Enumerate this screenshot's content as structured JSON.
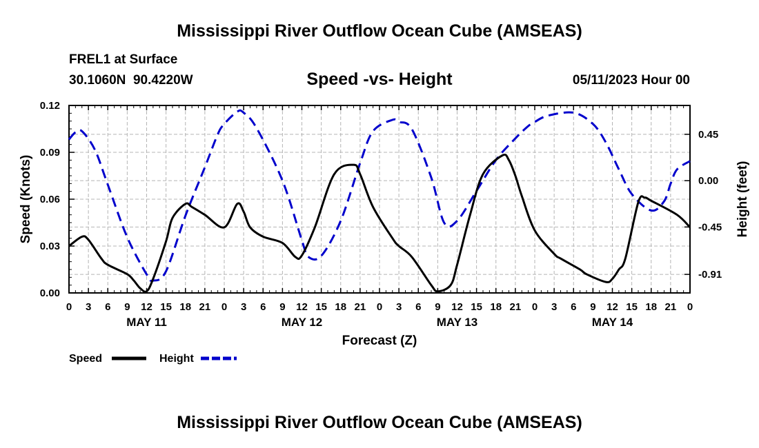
{
  "page": {
    "title": "Mississippi River Outflow Ocean Cube (AMSEAS)",
    "footer_title": "Mississippi River Outflow Ocean Cube (AMSEAS)",
    "station": "FREL1 at Surface",
    "coords": "30.1060N  90.4220W",
    "chart_title": "Speed -vs- Height",
    "date": "05/11/2023 Hour 00"
  },
  "chart_data": {
    "type": "line",
    "title": "Speed -vs- Height",
    "xlabel": "Forecast (Z)",
    "ylabel": "Speed (Knots)",
    "y2label": "Height (feet)",
    "xlim": [
      0,
      96
    ],
    "ylim": [
      0,
      0.12
    ],
    "y2lim": [
      -1.09,
      0.73
    ],
    "yticks": [
      "0.00",
      "0.03",
      "0.06",
      "0.09",
      "0.12"
    ],
    "y2ticks": [
      "-0.91",
      "-0.45",
      "0.00",
      "0.45"
    ],
    "xtick_labels": [
      "0",
      "3",
      "6",
      "9",
      "12",
      "15",
      "18",
      "21",
      "0",
      "3",
      "6",
      "9",
      "12",
      "15",
      "18",
      "21",
      "0",
      "3",
      "6",
      "9",
      "12",
      "15",
      "18",
      "21",
      "0",
      "3",
      "6",
      "9",
      "12",
      "15",
      "18",
      "21",
      "0"
    ],
    "day_labels": [
      "MAY 11",
      "MAY 12",
      "MAY 13",
      "MAY 14"
    ],
    "grid": true,
    "series": [
      {
        "name": "Speed",
        "color": "#000000",
        "axis": "left",
        "x": [
          0,
          2,
          3,
          5,
          6,
          9,
          10,
          11,
          12,
          13,
          15,
          16,
          18,
          19,
          21,
          24,
          26,
          27,
          28,
          30,
          33,
          35,
          36,
          38,
          41,
          44,
          45,
          47,
          50,
          51,
          53,
          56,
          57,
          59,
          60,
          62,
          64,
          67,
          68,
          69,
          70,
          72,
          75,
          76,
          79,
          80,
          83,
          84,
          85,
          86,
          88,
          89,
          90,
          94,
          96
        ],
        "values": [
          0.03,
          0.036,
          0.034,
          0.022,
          0.018,
          0.012,
          0.008,
          0.003,
          0.001,
          0.009,
          0.033,
          0.048,
          0.057,
          0.055,
          0.05,
          0.042,
          0.057,
          0.052,
          0.042,
          0.036,
          0.032,
          0.023,
          0.024,
          0.042,
          0.076,
          0.082,
          0.076,
          0.055,
          0.035,
          0.03,
          0.023,
          0.005,
          0.001,
          0.005,
          0.018,
          0.05,
          0.076,
          0.088,
          0.085,
          0.075,
          0.062,
          0.04,
          0.025,
          0.022,
          0.015,
          0.012,
          0.007,
          0.009,
          0.015,
          0.022,
          0.058,
          0.061,
          0.059,
          0.05,
          0.042
        ]
      },
      {
        "name": "Height",
        "color": "#0000cc",
        "axis": "right",
        "x": [
          0,
          1,
          2,
          4,
          6,
          9,
          12,
          13,
          15,
          18,
          21,
          23,
          24,
          26,
          27,
          29,
          33,
          36,
          37,
          39,
          42,
          45,
          47,
          50,
          51,
          53,
          56,
          58,
          60,
          63,
          66,
          69,
          71,
          72,
          74,
          78,
          81,
          83,
          85,
          87,
          90,
          92,
          93,
          94,
          96
        ],
        "values": [
          0.4,
          0.47,
          0.48,
          0.3,
          -0.04,
          -0.55,
          -0.91,
          -0.97,
          -0.88,
          -0.34,
          0.13,
          0.45,
          0.55,
          0.67,
          0.66,
          0.51,
          0.0,
          -0.58,
          -0.74,
          -0.73,
          -0.39,
          0.17,
          0.48,
          0.59,
          0.57,
          0.5,
          0.03,
          -0.41,
          -0.39,
          -0.1,
          0.2,
          0.41,
          0.53,
          0.57,
          0.63,
          0.66,
          0.55,
          0.37,
          0.11,
          -0.13,
          -0.29,
          -0.2,
          -0.03,
          0.11,
          0.19
        ]
      }
    ]
  },
  "legend": {
    "speed_label": "Speed",
    "height_label": "Height"
  }
}
